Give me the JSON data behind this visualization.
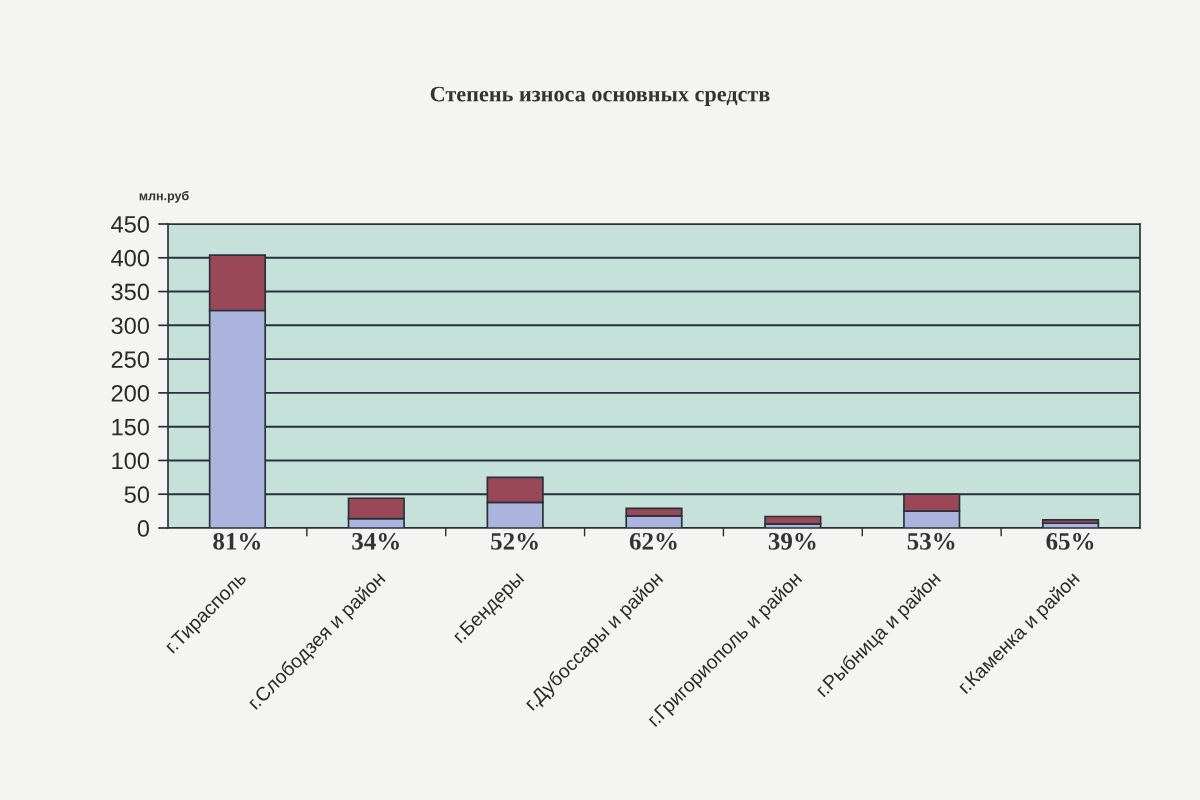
{
  "chart_data": {
    "type": "bar",
    "title": "Степень износа основных средств",
    "ylabel": "млн.руб",
    "categories": [
      "г.Тирасполь",
      "г.Слободзея и район",
      "г.Бендеры",
      "г.Дубоссары и район",
      "г.Григориополь и район",
      "г.Рыбница и район",
      "г.Каменка и район"
    ],
    "stacked": true,
    "series": [
      {
        "color": "#aab4dc",
        "values": [
          322,
          14,
          38,
          18,
          6,
          25,
          7
        ]
      },
      {
        "color": "#9a4858",
        "values": [
          82,
          30,
          37,
          11,
          11,
          25,
          5
        ]
      }
    ],
    "ylim": [
      0,
      450
    ],
    "yticks": [
      0,
      50,
      100,
      150,
      200,
      250,
      300,
      350,
      400,
      450
    ],
    "grid": "y",
    "annotations": [
      "81%",
      "34%",
      "52%",
      "62%",
      "39%",
      "53%",
      "65%"
    ]
  }
}
